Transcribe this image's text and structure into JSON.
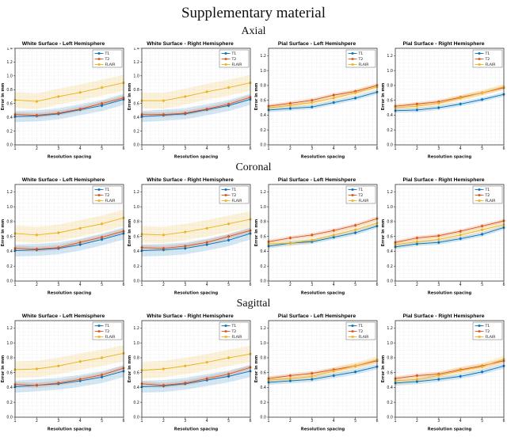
{
  "page": {
    "title": "Supplementary material"
  },
  "rows": [
    {
      "label": "Axial"
    },
    {
      "label": "Coronal"
    },
    {
      "label": "Sagittal"
    }
  ],
  "legend_labels": [
    "T1",
    "T2",
    "FLAIR"
  ],
  "colors": {
    "T1": "#0072BD",
    "T2": "#D95319",
    "FLAIR": "#EDB120"
  },
  "chart_data": [
    {
      "type": "line",
      "plane": "Axial",
      "title": "White Surface - Left Hemisphere",
      "xlabel": "Resolution spacing",
      "ylabel": "Error in mm",
      "x": [
        1,
        2,
        3,
        4,
        5,
        6
      ],
      "xlim": [
        1,
        6
      ],
      "ylim": [
        0,
        1.4
      ],
      "ytick_step": 0.2,
      "grid": true,
      "legend_position": "top-right",
      "series": [
        {
          "name": "T1",
          "color": "#0072BD",
          "values": [
            0.41,
            0.42,
            0.45,
            0.51,
            0.57,
            0.66
          ],
          "band": 0.08
        },
        {
          "name": "T2",
          "color": "#D95319",
          "values": [
            0.44,
            0.43,
            0.46,
            0.52,
            0.6,
            0.68
          ],
          "band": 0.035
        },
        {
          "name": "FLAIR",
          "color": "#EDB120",
          "values": [
            0.65,
            0.63,
            0.7,
            0.76,
            0.83,
            0.9
          ],
          "band": 0.115
        }
      ]
    },
    {
      "type": "line",
      "plane": "Axial",
      "title": "White Surface - Right Hemisphere",
      "xlabel": "Resolution spacing",
      "ylabel": "Error in mm",
      "x": [
        1,
        2,
        3,
        4,
        5,
        6
      ],
      "xlim": [
        1,
        6
      ],
      "ylim": [
        0,
        1.4
      ],
      "ytick_step": 0.2,
      "grid": true,
      "legend_position": "top-right",
      "series": [
        {
          "name": "T1",
          "color": "#0072BD",
          "values": [
            0.41,
            0.43,
            0.45,
            0.51,
            0.57,
            0.66
          ],
          "band": 0.08
        },
        {
          "name": "T2",
          "color": "#D95319",
          "values": [
            0.44,
            0.44,
            0.46,
            0.52,
            0.59,
            0.69
          ],
          "band": 0.035
        },
        {
          "name": "FLAIR",
          "color": "#EDB120",
          "values": [
            0.64,
            0.64,
            0.7,
            0.77,
            0.83,
            0.9
          ],
          "band": 0.115
        }
      ]
    },
    {
      "type": "line",
      "plane": "Axial",
      "title": "Pial Surface - Left Hemishpere",
      "xlabel": "Resolution spacing",
      "ylabel": "Error in mm",
      "x": [
        1,
        2,
        3,
        4,
        5,
        6
      ],
      "xlim": [
        1,
        6
      ],
      "ylim": [
        0,
        1.3
      ],
      "ytick_step": 0.2,
      "grid": true,
      "legend_position": "top-right",
      "series": [
        {
          "name": "T1",
          "color": "#0072BD",
          "values": [
            0.47,
            0.49,
            0.51,
            0.57,
            0.63,
            0.71
          ],
          "band": 0.03
        },
        {
          "name": "T2",
          "color": "#D95319",
          "values": [
            0.52,
            0.56,
            0.6,
            0.67,
            0.72,
            0.8
          ],
          "band": 0.028
        },
        {
          "name": "FLAIR",
          "color": "#EDB120",
          "values": [
            0.5,
            0.53,
            0.57,
            0.63,
            0.7,
            0.78
          ],
          "band": 0.04
        }
      ]
    },
    {
      "type": "line",
      "plane": "Axial",
      "title": "Pial Surface - Right Hemisphere",
      "xlabel": "Resolution spacing",
      "ylabel": "Error in mm",
      "x": [
        1,
        2,
        3,
        4,
        5,
        6
      ],
      "xlim": [
        1,
        6
      ],
      "ylim": [
        0,
        1.3
      ],
      "ytick_step": 0.2,
      "grid": true,
      "legend_position": "top-right",
      "series": [
        {
          "name": "T1",
          "color": "#0072BD",
          "values": [
            0.46,
            0.47,
            0.5,
            0.55,
            0.61,
            0.68
          ],
          "band": 0.03
        },
        {
          "name": "T2",
          "color": "#D95319",
          "values": [
            0.52,
            0.55,
            0.58,
            0.64,
            0.7,
            0.77
          ],
          "band": 0.028
        },
        {
          "name": "FLAIR",
          "color": "#EDB120",
          "values": [
            0.5,
            0.52,
            0.56,
            0.63,
            0.7,
            0.78
          ],
          "band": 0.04
        }
      ]
    },
    {
      "type": "line",
      "plane": "Coronal",
      "title": "White Surface - Left Hemisphere",
      "xlabel": "Resolution spacing",
      "ylabel": "Error in mm",
      "x": [
        1,
        2,
        3,
        4,
        5,
        6
      ],
      "xlim": [
        1,
        6
      ],
      "ylim": [
        0,
        1.3
      ],
      "ytick_step": 0.2,
      "grid": true,
      "legend_position": "top-right",
      "series": [
        {
          "name": "T1",
          "color": "#0072BD",
          "values": [
            0.41,
            0.42,
            0.44,
            0.49,
            0.56,
            0.64
          ],
          "band": 0.08
        },
        {
          "name": "T2",
          "color": "#D95319",
          "values": [
            0.44,
            0.43,
            0.45,
            0.52,
            0.59,
            0.67
          ],
          "band": 0.035
        },
        {
          "name": "FLAIR",
          "color": "#EDB120",
          "values": [
            0.64,
            0.62,
            0.65,
            0.71,
            0.77,
            0.85
          ],
          "band": 0.11
        }
      ]
    },
    {
      "type": "line",
      "plane": "Coronal",
      "title": "White Surface - Right Hemisphere",
      "xlabel": "Resolution spacing",
      "ylabel": "Error in mm",
      "x": [
        1,
        2,
        3,
        4,
        5,
        6
      ],
      "xlim": [
        1,
        6
      ],
      "ylim": [
        0,
        1.3
      ],
      "ytick_step": 0.2,
      "grid": true,
      "legend_position": "top-right",
      "series": [
        {
          "name": "T1",
          "color": "#0072BD",
          "values": [
            0.41,
            0.42,
            0.44,
            0.49,
            0.55,
            0.64
          ],
          "band": 0.08
        },
        {
          "name": "T2",
          "color": "#D95319",
          "values": [
            0.45,
            0.44,
            0.47,
            0.52,
            0.6,
            0.68
          ],
          "band": 0.035
        },
        {
          "name": "FLAIR",
          "color": "#EDB120",
          "values": [
            0.63,
            0.62,
            0.66,
            0.71,
            0.77,
            0.83
          ],
          "band": 0.11
        }
      ]
    },
    {
      "type": "line",
      "plane": "Coronal",
      "title": "Pial Surface - Left Hemishpere",
      "xlabel": "Resolution spacing",
      "ylabel": "Error in mm",
      "x": [
        1,
        2,
        3,
        4,
        5,
        6
      ],
      "xlim": [
        1,
        6
      ],
      "ylim": [
        0,
        1.3
      ],
      "ytick_step": 0.2,
      "grid": true,
      "legend_position": "top-right",
      "series": [
        {
          "name": "T1",
          "color": "#0072BD",
          "values": [
            0.47,
            0.51,
            0.53,
            0.59,
            0.65,
            0.74
          ],
          "band": 0.03
        },
        {
          "name": "T2",
          "color": "#D95319",
          "values": [
            0.53,
            0.58,
            0.62,
            0.68,
            0.75,
            0.84
          ],
          "band": 0.028
        },
        {
          "name": "FLAIR",
          "color": "#EDB120",
          "values": [
            0.5,
            0.51,
            0.55,
            0.62,
            0.69,
            0.78
          ],
          "band": 0.04
        }
      ]
    },
    {
      "type": "line",
      "plane": "Coronal",
      "title": "Pial Surface - Right Hemisphere",
      "xlabel": "Resolution spacing",
      "ylabel": "Error in mm",
      "x": [
        1,
        2,
        3,
        4,
        5,
        6
      ],
      "xlim": [
        1,
        6
      ],
      "ylim": [
        0,
        1.3
      ],
      "ytick_step": 0.2,
      "grid": true,
      "legend_position": "top-right",
      "series": [
        {
          "name": "T1",
          "color": "#0072BD",
          "values": [
            0.46,
            0.5,
            0.52,
            0.57,
            0.63,
            0.72
          ],
          "band": 0.03
        },
        {
          "name": "T2",
          "color": "#D95319",
          "values": [
            0.52,
            0.58,
            0.61,
            0.67,
            0.74,
            0.81
          ],
          "band": 0.028
        },
        {
          "name": "FLAIR",
          "color": "#EDB120",
          "values": [
            0.49,
            0.53,
            0.56,
            0.62,
            0.69,
            0.76
          ],
          "band": 0.04
        }
      ]
    },
    {
      "type": "line",
      "plane": "Sagittal",
      "title": "White Surface - Left Hemisphere",
      "xlabel": "Resolution spacing",
      "ylabel": "Error in mm",
      "x": [
        1,
        2,
        3,
        4,
        5,
        6
      ],
      "xlim": [
        1,
        6
      ],
      "ylim": [
        0,
        1.3
      ],
      "ytick_step": 0.2,
      "grid": true,
      "legend_position": "top-right",
      "series": [
        {
          "name": "T1",
          "color": "#0072BD",
          "values": [
            0.41,
            0.43,
            0.45,
            0.49,
            0.54,
            0.62
          ],
          "band": 0.08
        },
        {
          "name": "T2",
          "color": "#D95319",
          "values": [
            0.44,
            0.43,
            0.46,
            0.51,
            0.57,
            0.66
          ],
          "band": 0.035
        },
        {
          "name": "FLAIR",
          "color": "#EDB120",
          "values": [
            0.64,
            0.65,
            0.69,
            0.75,
            0.8,
            0.86
          ],
          "band": 0.11
        }
      ]
    },
    {
      "type": "line",
      "plane": "Sagittal",
      "title": "White Surface - Right Hemisphere",
      "xlabel": "Resolution spacing",
      "ylabel": "Error in mm",
      "x": [
        1,
        2,
        3,
        4,
        5,
        6
      ],
      "xlim": [
        1,
        6
      ],
      "ylim": [
        0,
        1.3
      ],
      "ytick_step": 0.2,
      "grid": true,
      "legend_position": "top-right",
      "series": [
        {
          "name": "T1",
          "color": "#0072BD",
          "values": [
            0.41,
            0.42,
            0.45,
            0.5,
            0.55,
            0.62
          ],
          "band": 0.08
        },
        {
          "name": "T2",
          "color": "#D95319",
          "values": [
            0.45,
            0.43,
            0.46,
            0.52,
            0.58,
            0.67
          ],
          "band": 0.035
        },
        {
          "name": "FLAIR",
          "color": "#EDB120",
          "values": [
            0.63,
            0.65,
            0.69,
            0.74,
            0.8,
            0.85
          ],
          "band": 0.11
        }
      ]
    },
    {
      "type": "line",
      "plane": "Sagittal",
      "title": "Pial Surface - Left Hemishpere",
      "xlabel": "Resolution spacing",
      "ylabel": "Error in mm",
      "x": [
        1,
        2,
        3,
        4,
        5,
        6
      ],
      "xlim": [
        1,
        6
      ],
      "ylim": [
        0,
        1.3
      ],
      "ytick_step": 0.2,
      "grid": true,
      "legend_position": "top-right",
      "series": [
        {
          "name": "T1",
          "color": "#0072BD",
          "values": [
            0.47,
            0.49,
            0.51,
            0.56,
            0.61,
            0.68
          ],
          "band": 0.035
        },
        {
          "name": "T2",
          "color": "#D95319",
          "values": [
            0.52,
            0.56,
            0.59,
            0.64,
            0.69,
            0.76
          ],
          "band": 0.03
        },
        {
          "name": "FLAIR",
          "color": "#EDB120",
          "values": [
            0.5,
            0.52,
            0.55,
            0.62,
            0.69,
            0.77
          ],
          "band": 0.05
        }
      ]
    },
    {
      "type": "line",
      "plane": "Sagittal",
      "title": "Pial Surface - Right Hemisphere",
      "xlabel": "Resolution spacing",
      "ylabel": "Error in mm",
      "x": [
        1,
        2,
        3,
        4,
        5,
        6
      ],
      "xlim": [
        1,
        6
      ],
      "ylim": [
        0,
        1.3
      ],
      "ytick_step": 0.2,
      "grid": true,
      "legend_position": "top-right",
      "series": [
        {
          "name": "T1",
          "color": "#0072BD",
          "values": [
            0.46,
            0.48,
            0.51,
            0.55,
            0.61,
            0.69
          ],
          "band": 0.035
        },
        {
          "name": "T2",
          "color": "#D95319",
          "values": [
            0.52,
            0.56,
            0.58,
            0.64,
            0.69,
            0.76
          ],
          "band": 0.03
        },
        {
          "name": "FLAIR",
          "color": "#EDB120",
          "values": [
            0.49,
            0.51,
            0.56,
            0.63,
            0.68,
            0.78
          ],
          "band": 0.05
        }
      ]
    }
  ]
}
